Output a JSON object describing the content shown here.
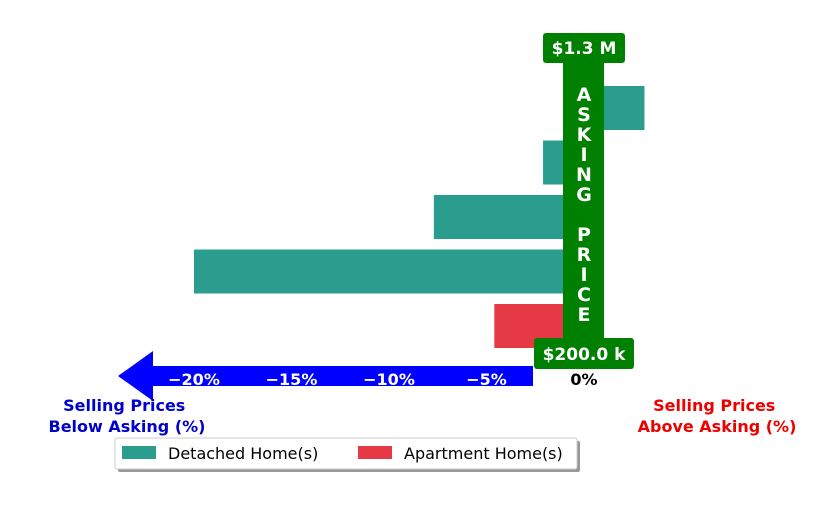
{
  "chart_data": {
    "type": "bar",
    "orientation": "horizontal",
    "xlim": [
      -20,
      1
    ],
    "xticks": [
      -20,
      -15,
      -10,
      -5,
      0
    ],
    "xtick_labels": [
      "−20%",
      "−15%",
      "−10%",
      "−5%",
      "0%"
    ],
    "bars": [
      {
        "series": "Detached Home(s)",
        "value": 3.1
      },
      {
        "series": "Detached Home(s)",
        "value": -2.1
      },
      {
        "series": "Detached Home(s)",
        "value": -7.7
      },
      {
        "series": "Detached Home(s)",
        "value": -20.0
      },
      {
        "series": "Apartment Home(s)",
        "value": -4.6
      }
    ],
    "left_label": [
      "Selling Prices",
      "Below Asking (%)"
    ],
    "right_label": [
      "Selling Prices",
      "Above Asking (%)"
    ],
    "asking_price_letters": [
      "A",
      "S",
      "K",
      "I",
      "N",
      "G",
      "",
      "P",
      "R",
      "I",
      "C",
      "E"
    ],
    "top_price": "$1.3 M",
    "bottom_price": "$200.0 k",
    "legend": {
      "placement": "bottom-center",
      "entries": [
        {
          "label": "Detached Home(s)",
          "color": "#2a9d8f"
        },
        {
          "label": "Apartment Home(s)",
          "color": "#e63946"
        }
      ]
    },
    "colors": {
      "detached": "#2a9d8f",
      "apartment": "#e63946",
      "arrow": "#0000ff",
      "asking": "#008000",
      "left_label": "#0000cc",
      "right_label": "#ee0000"
    }
  }
}
